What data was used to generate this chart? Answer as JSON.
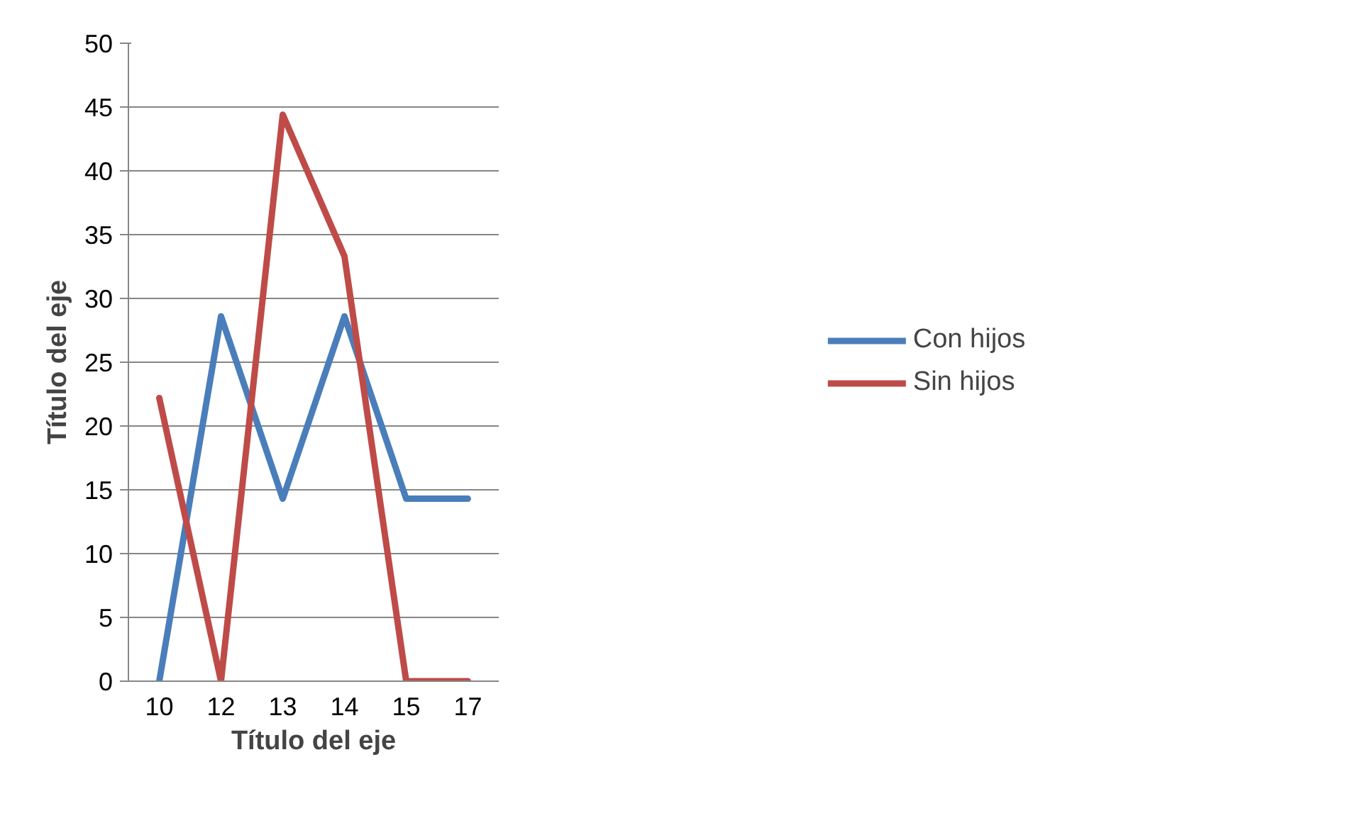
{
  "chart_data": {
    "type": "line",
    "xlabel": "Título del eje",
    "ylabel": "Título del eje",
    "categories": [
      "10",
      "12",
      "13",
      "14",
      "15",
      "17"
    ],
    "series": [
      {
        "name": "Con hijos",
        "color": "#4a7ebb",
        "values": [
          0,
          28.6,
          14.3,
          28.6,
          14.3,
          14.3
        ]
      },
      {
        "name": "Sin hijos",
        "color": "#be4b48",
        "values": [
          22.2,
          0,
          44.4,
          33.3,
          0,
          0
        ]
      }
    ],
    "ylim": [
      0,
      50
    ],
    "yticks": [
      0,
      5,
      10,
      15,
      20,
      25,
      30,
      35,
      40,
      45,
      50
    ],
    "grid": "y",
    "legend": "right",
    "marker": "none",
    "line_style": "solid"
  }
}
